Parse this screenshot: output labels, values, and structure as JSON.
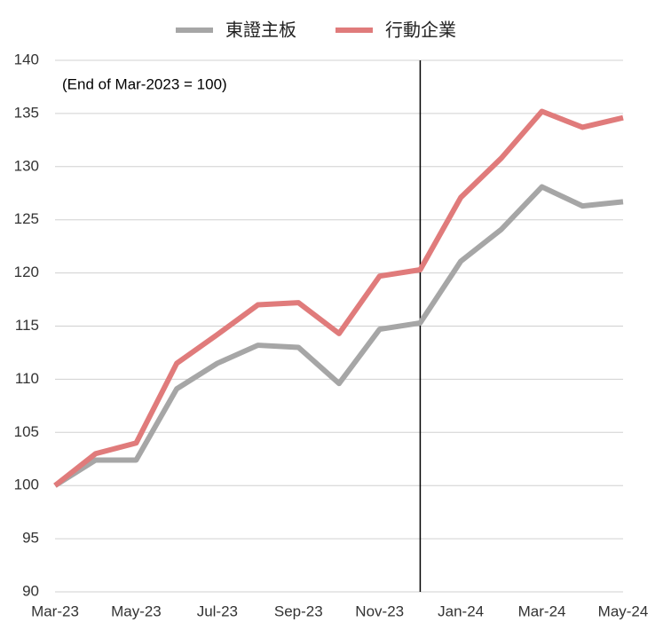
{
  "chart_data": {
    "type": "line",
    "annotation": "(End of Mar-2023 = 100)",
    "categories": [
      "Mar-23",
      null,
      "May-23",
      null,
      "Jul-23",
      null,
      "Sep-23",
      null,
      "Nov-23",
      null,
      "Jan-24",
      null,
      "Mar-24",
      null,
      "May-24"
    ],
    "series": [
      {
        "name": "東證主板",
        "color": "#a6a6a6",
        "values": [
          100,
          102.4,
          102.4,
          109.1,
          111.5,
          113.2,
          113.0,
          109.6,
          114.7,
          115.3,
          121.1,
          124.1,
          128.1,
          126.3,
          126.7
        ]
      },
      {
        "name": "行動企業",
        "color": "#e07b7b",
        "values": [
          100,
          103.0,
          104.0,
          111.5,
          114.2,
          117.0,
          117.2,
          114.3,
          119.7,
          120.3,
          127.1,
          130.8,
          135.2,
          133.7,
          134.6
        ]
      }
    ],
    "ylim": [
      90,
      140
    ],
    "yticks": [
      90,
      95,
      100,
      105,
      110,
      115,
      120,
      125,
      130,
      135,
      140
    ],
    "grid": true,
    "legend": "top",
    "vertical_line_index": 9
  }
}
